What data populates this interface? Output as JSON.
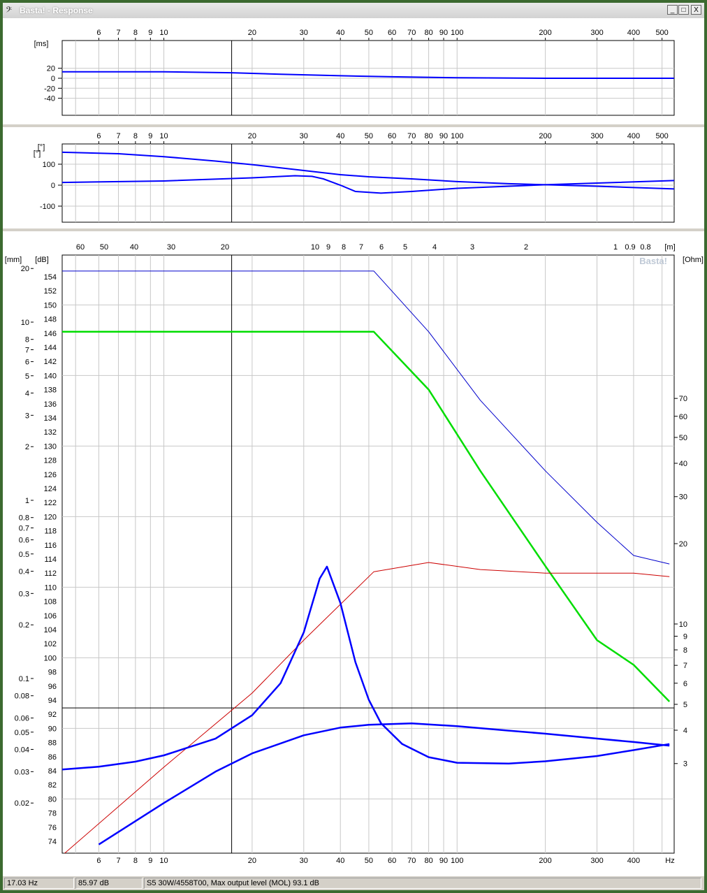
{
  "window": {
    "title": "Basta! - Response",
    "icon": "bass-clef-icon",
    "buttons": {
      "minimize": "_",
      "maximize": "□",
      "close": "X"
    }
  },
  "status": {
    "frequency": "17.03 Hz",
    "level": "85.97 dB",
    "info": "S5 30W/4558T00, Max output level (MOL) 93.1 dB"
  },
  "watermark": "Basta!",
  "chart_data": [
    {
      "type": "line",
      "name": "group-delay",
      "ylabel": "[ms]",
      "xscale": "log",
      "xlim": [
        4.5,
        550
      ],
      "ylim": [
        -50,
        50
      ],
      "yticks": [
        20,
        0,
        -20,
        -40
      ],
      "xtick_labels": [
        "6",
        "7",
        "8",
        "9",
        "10",
        "20",
        "30",
        "40",
        "50",
        "60",
        "70",
        "80",
        "90",
        "100",
        "200",
        "300",
        "400",
        "500"
      ],
      "grid": true,
      "series": [
        {
          "color": "#0000ff",
          "x": [
            4.5,
            10,
            17,
            25,
            40,
            60,
            100,
            200,
            550
          ],
          "y": [
            13,
            13,
            11,
            8,
            5,
            3,
            1,
            0,
            0
          ]
        }
      ]
    },
    {
      "type": "line",
      "name": "phase",
      "ylabel": "[°]",
      "xscale": "log",
      "xlim": [
        4.5,
        550
      ],
      "ylim": [
        -180,
        180
      ],
      "yticks": [
        100,
        0,
        -100
      ],
      "xtick_labels": [
        "6",
        "7",
        "8",
        "9",
        "10",
        "20",
        "30",
        "40",
        "50",
        "60",
        "70",
        "80",
        "90",
        "100",
        "200",
        "300",
        "400",
        "500"
      ],
      "grid": true,
      "series": [
        {
          "color": "#0000ff",
          "x": [
            4.5,
            7,
            10,
            15,
            20,
            30,
            40,
            50,
            70,
            100,
            150,
            200,
            300,
            550
          ],
          "y": [
            157,
            150,
            136,
            115,
            98,
            70,
            50,
            40,
            30,
            17,
            7,
            2,
            -5,
            -18
          ]
        },
        {
          "color": "#0000ff",
          "x": [
            4.5,
            10,
            20,
            28,
            32,
            35,
            40,
            45,
            55,
            70,
            100,
            200,
            300,
            550
          ],
          "y": [
            13,
            20,
            35,
            45,
            42,
            30,
            0,
            -30,
            -38,
            -30,
            -15,
            2,
            10,
            22
          ]
        }
      ]
    },
    {
      "type": "line",
      "name": "spl-impedance-excursion",
      "xlabel": "Hz",
      "ylabel_left": "[dB]",
      "ylabel_mm": "[mm]",
      "ylabel_right": "[Ohm]",
      "top_axis_label": "[m]",
      "xscale": "log",
      "xlim": [
        4.5,
        550
      ],
      "ylim": [
        72,
        156
      ],
      "ohm_scale": "log",
      "ohm_lim": [
        2.08,
        80
      ],
      "mm_scale": "log",
      "mm_lim": [
        0.0117,
        25.6
      ],
      "dB_ticks": [
        154,
        152,
        150,
        148,
        146,
        144,
        142,
        140,
        138,
        136,
        134,
        132,
        130,
        128,
        126,
        124,
        122,
        120,
        118,
        116,
        114,
        112,
        110,
        108,
        106,
        104,
        102,
        100,
        98,
        96,
        94,
        92,
        90,
        88,
        86,
        84,
        82,
        80,
        78,
        76,
        74
      ],
      "mm_ticks": [
        "20",
        "10",
        "8",
        "7",
        "6",
        "5",
        "4",
        "3",
        "2",
        "1",
        "0.8",
        "0.7",
        "0.6",
        "0.5",
        "0.4",
        "0.3",
        "0.2",
        "0.1",
        "0.08",
        "0.06",
        "0.05",
        "0.04",
        "0.03",
        "0.02"
      ],
      "ohm_ticks": [
        "70",
        "60",
        "50",
        "40",
        "30",
        "20",
        "10",
        "9",
        "8",
        "7",
        "6",
        "5",
        "4",
        "3"
      ],
      "meter_ticks": [
        "60",
        "50",
        "40",
        "30",
        "20",
        "10",
        "9",
        "8",
        "7",
        "6",
        "5",
        "4",
        "3",
        "2",
        "1",
        "0.9",
        "0.8"
      ],
      "xtick_labels": [
        "6",
        "7",
        "8",
        "9",
        "10",
        "20",
        "30",
        "40",
        "50",
        "60",
        "70",
        "80",
        "90",
        "100",
        "200",
        "300",
        "400"
      ],
      "crosshair": {
        "x_hz": 17.03,
        "y_db": 92.9
      },
      "grid": true,
      "series": [
        {
          "color": "#0000cc",
          "axis": "dB",
          "width": 1,
          "x": [
            4.5,
            52,
            80,
            120,
            200,
            300,
            400,
            530
          ],
          "y": [
            154.8,
            154.8,
            146.2,
            136.5,
            126.5,
            119.2,
            114.5,
            113.3
          ]
        },
        {
          "color": "#00dd00",
          "axis": "dB",
          "width": 2.5,
          "x": [
            4.5,
            52,
            80,
            120,
            200,
            300,
            400,
            530
          ],
          "y": [
            146.2,
            146.2,
            138.0,
            126.5,
            113.0,
            102.5,
            99.0,
            93.8
          ]
        },
        {
          "color": "#cc0000",
          "axis": "dB",
          "width": 1,
          "x": [
            4.5,
            10,
            20,
            30,
            52,
            80,
            120,
            200,
            400,
            530
          ],
          "y": [
            72,
            84.5,
            95.0,
            102.5,
            112.2,
            113.5,
            112.5,
            112.0,
            112.0,
            111.5
          ]
        },
        {
          "color": "#0000ff",
          "axis": "Ohm",
          "width": 2.5,
          "x": [
            4.5,
            6,
            8,
            10,
            15,
            20,
            25,
            30,
            34,
            36,
            40,
            45,
            50,
            55,
            65,
            80,
            100,
            150,
            200,
            300,
            400,
            530
          ],
          "y": [
            2.85,
            2.92,
            3.05,
            3.22,
            3.72,
            4.55,
            6.0,
            9.3,
            14.8,
            16.4,
            12.0,
            7.2,
            5.2,
            4.25,
            3.55,
            3.17,
            3.02,
            3.0,
            3.06,
            3.2,
            3.37,
            3.55
          ]
        },
        {
          "color": "#0000ff",
          "axis": "mm",
          "width": 2.5,
          "x": [
            6,
            10,
            15,
            20,
            30,
            40,
            50,
            70,
            100,
            150,
            200,
            300,
            400,
            530
          ],
          "y": [
            0.0117,
            0.02,
            0.03,
            0.038,
            0.048,
            0.053,
            0.055,
            0.056,
            0.054,
            0.051,
            0.049,
            0.046,
            0.044,
            0.042
          ]
        }
      ]
    }
  ]
}
